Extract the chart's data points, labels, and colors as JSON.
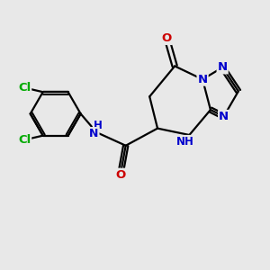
{
  "background_color": "#e8e8e8",
  "bond_color": "#000000",
  "bond_width": 1.6,
  "atom_colors": {
    "N": "#0000cc",
    "O": "#cc0000",
    "Cl": "#00aa00",
    "NH": "#0000cc"
  },
  "font_size": 9.5,
  "figsize": [
    3.0,
    3.0
  ],
  "dpi": 100
}
